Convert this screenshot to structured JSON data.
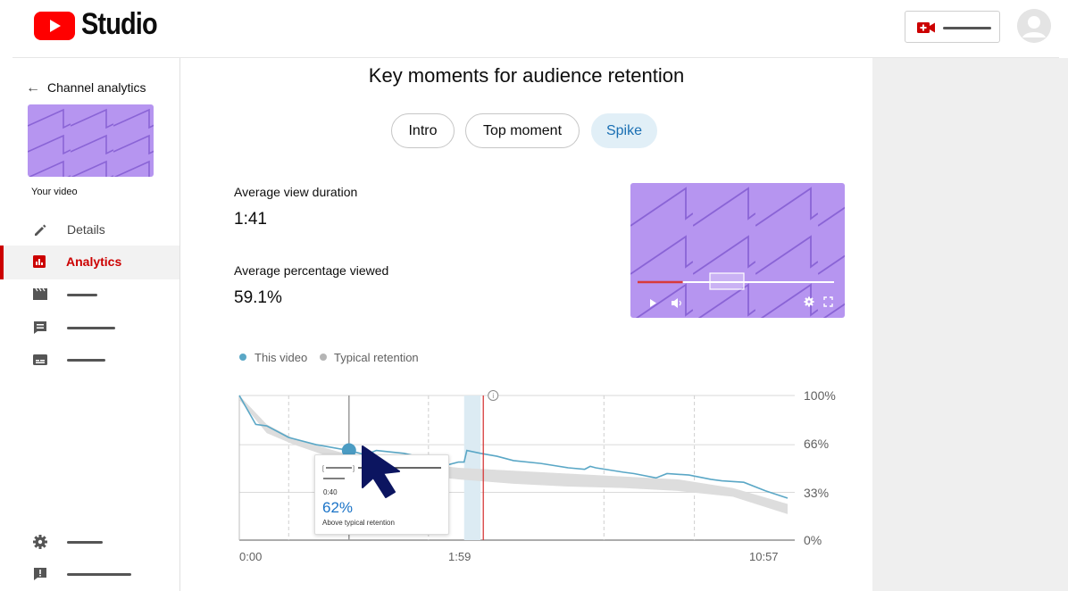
{
  "header": {
    "logo_icon": "youtube-play-logo",
    "app_name": "Studio",
    "create_icon": "video-camera-plus-icon",
    "avatar_icon": "account-avatar"
  },
  "sidebar": {
    "back_label": "Channel analytics",
    "video_caption": "Your video",
    "items": [
      {
        "label": "Details",
        "icon": "pencil-icon"
      },
      {
        "label": "Analytics",
        "icon": "analytics-bar-chart-icon",
        "active": true
      },
      {
        "label": "",
        "icon": "clapperboard-icon"
      },
      {
        "label": "",
        "icon": "comment-icon"
      },
      {
        "label": "",
        "icon": "subtitles-icon"
      }
    ],
    "bottom_items": [
      {
        "label": "",
        "icon": "gear-icon"
      },
      {
        "label": "",
        "icon": "feedback-icon"
      }
    ]
  },
  "main": {
    "title": "Key moments for audience retention",
    "chips": [
      {
        "label": "Intro",
        "selected": false
      },
      {
        "label": "Top moment",
        "selected": false
      },
      {
        "label": "Spike",
        "selected": true
      }
    ],
    "stats": {
      "avg_view_duration_label": "Average view duration",
      "avg_view_duration_value": "1:41",
      "avg_pct_viewed_label": "Average percentage viewed",
      "avg_pct_viewed_value": "59.1%"
    },
    "preview": {
      "play_icon": "play-icon",
      "volume_icon": "volume-icon",
      "settings_icon": "gear-icon",
      "fullscreen_icon": "fullscreen-icon",
      "progress": 0.23
    },
    "legend": {
      "this_video": "This video",
      "typical": "Typical retention",
      "this_video_color": "#5aa7c6",
      "typical_color": "#b5b5b5"
    },
    "info_icon": "info-icon",
    "tooltip": {
      "time": "0:40",
      "percent": "62%",
      "description": "Above typical retention"
    }
  },
  "colors": {
    "brand_red": "#ff0000",
    "active_red": "#cc0000",
    "accent_blue": "#1a73c7",
    "spike_chip_bg": "#e1eff7",
    "thumbnail_purple": "#b695f0"
  },
  "chart_data": {
    "type": "line",
    "x_tick_labels": [
      "0:00",
      "1:59",
      "10:57"
    ],
    "y_tick_labels": [
      "100%",
      "66%",
      "33%",
      "0%"
    ],
    "ylim": [
      0,
      100
    ],
    "grid": true,
    "series": [
      {
        "name": "This video",
        "x": [
          0.0,
          0.03,
          0.05,
          0.09,
          0.14,
          0.2,
          0.23,
          0.25,
          0.3,
          0.36,
          0.38,
          0.4,
          0.41,
          0.415,
          0.44,
          0.47,
          0.5,
          0.55,
          0.6,
          0.63,
          0.64,
          0.65,
          0.7,
          0.72,
          0.76,
          0.78,
          0.82,
          0.86,
          0.88,
          0.92,
          0.96,
          1.0
        ],
        "values": [
          100,
          80,
          79,
          71,
          66,
          62,
          59,
          62,
          60,
          55,
          52,
          54,
          54,
          62,
          60,
          58,
          55,
          53,
          50,
          49,
          51,
          50,
          47,
          46,
          43,
          46,
          45,
          42,
          41,
          40,
          34,
          29
        ]
      },
      {
        "name": "Typical retention",
        "x": [
          0.0,
          0.05,
          0.1,
          0.2,
          0.3,
          0.4,
          0.5,
          0.6,
          0.7,
          0.8,
          0.9,
          1.0
        ],
        "lower": [
          97,
          74,
          66,
          53,
          46,
          42,
          39,
          37,
          36,
          34,
          30,
          18
        ],
        "upper": [
          100,
          80,
          70,
          59,
          54,
          50,
          48,
          46,
          44,
          42,
          36,
          25
        ]
      }
    ],
    "highlight": {
      "x": 0.445
    },
    "spike_band": {
      "x0": 0.41,
      "x1": 0.44
    },
    "hover": {
      "x": 0.2,
      "value": 62
    }
  }
}
